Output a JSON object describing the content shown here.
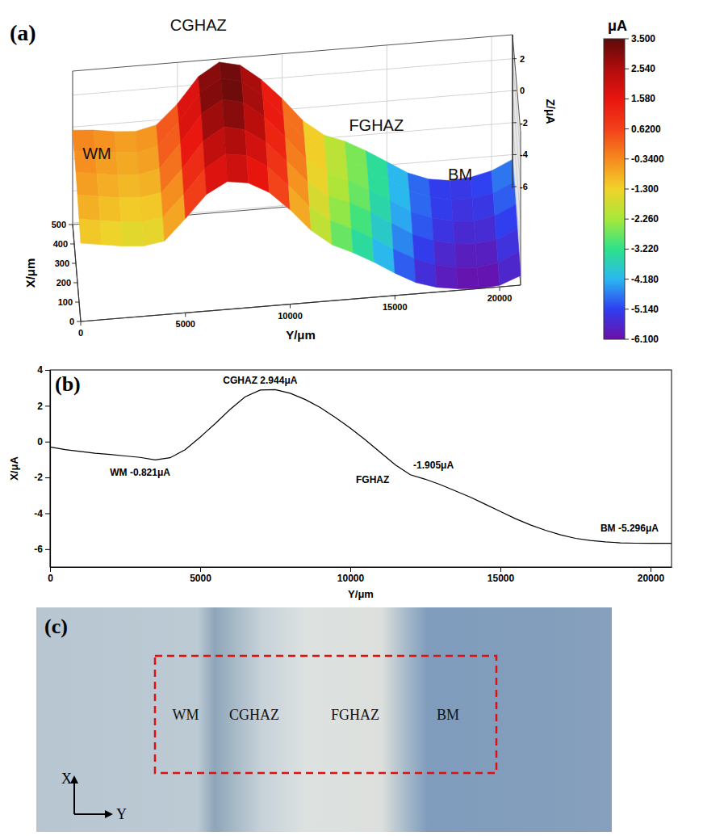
{
  "chart_data": [
    {
      "type": "surface",
      "panel": "(a)",
      "x": [
        0,
        100,
        200,
        300,
        400,
        500
      ],
      "y": [
        0,
        1000,
        2000,
        3000,
        4000,
        5000,
        6000,
        7000,
        8000,
        9000,
        10000,
        11000,
        12000,
        13000,
        14000,
        15000,
        16000,
        17000,
        18000,
        19000,
        20000,
        21000
      ],
      "z": [
        [
          -1.2,
          -1.4,
          -1.6,
          -1.7,
          -1.5,
          -0.2,
          1.2,
          1.9,
          1.7,
          1.0,
          -0.2,
          -1.6,
          -2.6,
          -3.2,
          -3.9,
          -4.7,
          -5.4,
          -5.8,
          -6.0,
          -6.1,
          -6.0,
          -5.5
        ],
        [
          -0.9,
          -1.1,
          -1.3,
          -1.4,
          -1.2,
          0.1,
          1.6,
          2.4,
          2.2,
          1.4,
          0.1,
          -1.3,
          -2.3,
          -2.9,
          -3.6,
          -4.4,
          -5.1,
          -5.6,
          -5.9,
          -6.0,
          -5.8,
          -5.2
        ],
        [
          -0.6,
          -0.8,
          -1.0,
          -1.1,
          -0.9,
          0.5,
          2.1,
          2.9,
          2.6,
          1.7,
          0.4,
          -1.0,
          -2.0,
          -2.5,
          -3.2,
          -4.0,
          -4.8,
          -5.3,
          -5.6,
          -5.7,
          -5.6,
          -5.0
        ],
        [
          -0.4,
          -0.6,
          -0.8,
          -0.9,
          -0.6,
          0.9,
          2.6,
          3.4,
          3.1,
          2.1,
          0.7,
          -0.8,
          -1.8,
          -2.3,
          -3.0,
          -3.8,
          -4.6,
          -5.1,
          -5.4,
          -5.5,
          -5.3,
          -4.7
        ],
        [
          -0.3,
          -0.4,
          -0.6,
          -0.7,
          -0.4,
          1.0,
          2.7,
          3.5,
          3.2,
          2.2,
          0.8,
          -0.7,
          -1.7,
          -2.2,
          -2.9,
          -3.7,
          -4.5,
          -5.0,
          -5.3,
          -5.3,
          -5.1,
          -4.5
        ],
        [
          -0.2,
          -0.3,
          -0.5,
          -0.6,
          -0.3,
          0.9,
          2.5,
          3.3,
          3.0,
          2.0,
          0.7,
          -0.8,
          -1.8,
          -2.3,
          -3.0,
          -3.8,
          -4.6,
          -5.1,
          -5.3,
          -5.2,
          -4.9,
          -4.3
        ]
      ],
      "xlim": [
        0,
        500
      ],
      "xticks": [
        0,
        100,
        200,
        300,
        400,
        500
      ],
      "ylim": [
        0,
        21000
      ],
      "yticks": [
        0,
        5000,
        10000,
        15000,
        20000
      ],
      "zlim": [
        -6.1,
        3.5
      ],
      "zticks": [
        -6,
        -4,
        -2,
        0,
        2
      ],
      "xlabel": "X/μm",
      "ylabel": "Y/μm",
      "zlabel": "Z/μA",
      "grid": true,
      "annotations": [
        {
          "text": "WM",
          "x": 300,
          "y": 1000,
          "z": 0.3
        },
        {
          "text": "CGHAZ",
          "x": 500,
          "y": 6000,
          "z": 5.4
        },
        {
          "text": "FGHAZ",
          "x": 500,
          "y": 14500,
          "z": -1.8
        },
        {
          "text": "BM",
          "x": 500,
          "y": 18500,
          "z": -5.3
        }
      ],
      "colorbar": {
        "title": "μA",
        "range": [
          -6.1,
          3.5
        ],
        "ticks": [
          {
            "value": 3.5,
            "label": "3.500"
          },
          {
            "value": 2.54,
            "label": "2.540"
          },
          {
            "value": 1.58,
            "label": "1.580"
          },
          {
            "value": 0.62,
            "label": "0.6200"
          },
          {
            "value": -0.34,
            "label": "-0.3400"
          },
          {
            "value": -1.3,
            "label": "-1.300"
          },
          {
            "value": -2.26,
            "label": "-2.260"
          },
          {
            "value": -3.22,
            "label": "-3.220"
          },
          {
            "value": -4.18,
            "label": "-4.180"
          },
          {
            "value": -5.14,
            "label": "-5.140"
          },
          {
            "value": -6.1,
            "label": "-6.100"
          }
        ]
      }
    },
    {
      "type": "line",
      "panel": "(b)",
      "x": [
        0,
        500,
        1000,
        1500,
        2000,
        2500,
        3000,
        3500,
        4000,
        4500,
        5000,
        5500,
        6000,
        6500,
        7000,
        7500,
        8000,
        8500,
        9000,
        9500,
        10000,
        10500,
        11000,
        11500,
        12000,
        12500,
        13000,
        13500,
        14000,
        14500,
        15000,
        15500,
        16000,
        16500,
        17000,
        17500,
        18000,
        18500,
        19000,
        19500,
        20000,
        20500,
        20700
      ],
      "values": [
        -0.3,
        -0.45,
        -0.55,
        -0.65,
        -0.72,
        -0.8,
        -0.88,
        -1.02,
        -0.9,
        -0.45,
        0.25,
        1.0,
        1.8,
        2.5,
        2.88,
        2.9,
        2.7,
        2.35,
        1.9,
        1.35,
        0.75,
        0.1,
        -0.6,
        -1.3,
        -1.85,
        -2.1,
        -2.4,
        -2.75,
        -3.1,
        -3.5,
        -3.9,
        -4.3,
        -4.65,
        -4.95,
        -5.2,
        -5.4,
        -5.52,
        -5.6,
        -5.65,
        -5.67,
        -5.68,
        -5.68,
        -5.68
      ],
      "color": "#000000",
      "xlim": [
        0,
        20700
      ],
      "xticks": [
        0,
        5000,
        10000,
        15000,
        20000
      ],
      "ylim": [
        -7,
        4
      ],
      "yticks": [
        -6,
        -4,
        -2,
        0,
        2,
        4
      ],
      "xlabel": "Y/μm",
      "ylabel": "X/μA",
      "grid": false,
      "annotations": [
        {
          "text": "WM -0.821μA",
          "x": 3000,
          "y": -1.9
        },
        {
          "text": "CGHAZ 2.944μA",
          "x": 7000,
          "y": 3.25
        },
        {
          "text": "FGHAZ",
          "x": 11300,
          "y": -2.3
        },
        {
          "text": "-1.905μA",
          "x": 12100,
          "y": -1.5
        },
        {
          "text": "BM -5.296μA",
          "x": 19300,
          "y": -5.0
        }
      ]
    }
  ],
  "photo": {
    "panel": "(c)",
    "labels": [
      "WM",
      "CGHAZ",
      "FGHAZ",
      "BM"
    ],
    "axes": [
      "X",
      "Y"
    ]
  }
}
